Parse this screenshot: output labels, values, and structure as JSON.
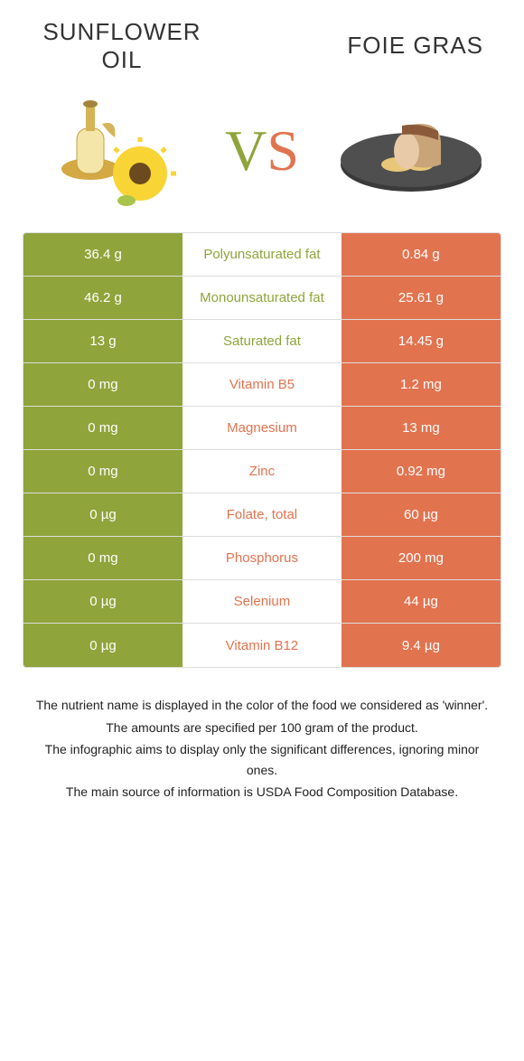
{
  "food_left": {
    "title": "SUNFLOWER\nOIL"
  },
  "food_right": {
    "title": "FOIE GRAS"
  },
  "vs": {
    "v": "V",
    "s": "S"
  },
  "colors": {
    "green": "#8fa43a",
    "orange": "#e2734f"
  },
  "rows": [
    {
      "left": "36.4 g",
      "label": "Polyunsaturated fat",
      "right": "0.84 g",
      "winner": "left"
    },
    {
      "left": "46.2 g",
      "label": "Monounsaturated fat",
      "right": "25.61 g",
      "winner": "left"
    },
    {
      "left": "13 g",
      "label": "Saturated fat",
      "right": "14.45 g",
      "winner": "left"
    },
    {
      "left": "0 mg",
      "label": "Vitamin B5",
      "right": "1.2 mg",
      "winner": "right"
    },
    {
      "left": "0 mg",
      "label": "Magnesium",
      "right": "13 mg",
      "winner": "right"
    },
    {
      "left": "0 mg",
      "label": "Zinc",
      "right": "0.92 mg",
      "winner": "right"
    },
    {
      "left": "0 µg",
      "label": "Folate, total",
      "right": "60 µg",
      "winner": "right"
    },
    {
      "left": "0 mg",
      "label": "Phosphorus",
      "right": "200 mg",
      "winner": "right"
    },
    {
      "left": "0 µg",
      "label": "Selenium",
      "right": "44 µg",
      "winner": "right"
    },
    {
      "left": "0 µg",
      "label": "Vitamin B12",
      "right": "9.4 µg",
      "winner": "right"
    }
  ],
  "notes": [
    "The nutrient name is displayed in the color of the food we considered as 'winner'.",
    "The amounts are specified per 100 gram of the product.",
    "The infographic aims to display only the significant differences, ignoring minor ones.",
    "The main source of information is USDA Food Composition Database."
  ]
}
